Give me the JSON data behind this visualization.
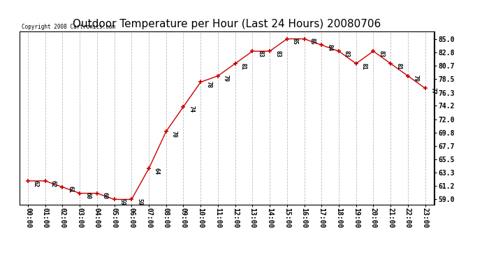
{
  "title": "Outdoor Temperature per Hour (Last 24 Hours) 20080706",
  "copyright": "Copyright 2008 Cartronics.com",
  "hours": [
    "00:00",
    "01:00",
    "02:00",
    "03:00",
    "04:00",
    "05:00",
    "06:00",
    "07:00",
    "08:00",
    "09:00",
    "10:00",
    "11:00",
    "12:00",
    "13:00",
    "14:00",
    "15:00",
    "16:00",
    "17:00",
    "18:00",
    "19:00",
    "20:00",
    "21:00",
    "22:00",
    "23:00"
  ],
  "values": [
    62,
    62,
    61,
    60,
    60,
    59,
    59,
    64,
    70,
    74,
    78,
    79,
    81,
    83,
    83,
    85,
    85,
    84,
    83,
    81,
    83,
    81,
    79,
    77
  ],
  "line_color": "#cc0000",
  "marker_color": "#cc0000",
  "marker_size": 5,
  "bg_color": "#ffffff",
  "plot_bg_color": "#ffffff",
  "grid_color": "#bbbbbb",
  "title_fontsize": 11,
  "tick_fontsize": 7,
  "annot_fontsize": 6,
  "yticks": [
    59.0,
    61.2,
    63.3,
    65.5,
    67.7,
    69.8,
    72.0,
    74.2,
    76.3,
    78.5,
    80.7,
    82.8,
    85.0
  ],
  "ylim": [
    58.2,
    86.2
  ]
}
